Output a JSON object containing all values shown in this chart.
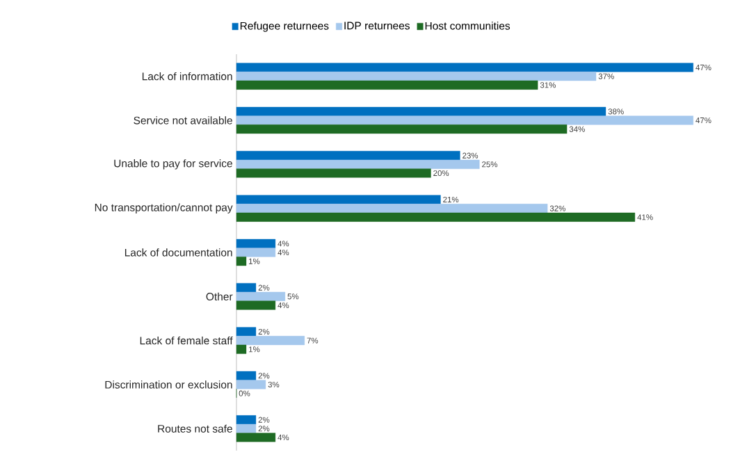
{
  "chart_data": {
    "type": "bar",
    "orientation": "horizontal",
    "legend": "top",
    "categories": [
      "Lack of information",
      "Service not available",
      "Unable to pay for service",
      "No transportation/cannot pay",
      "Lack of documentation",
      "Other",
      "Lack of female staff",
      "Discrimination or exclusion",
      "Routes not safe"
    ],
    "series": [
      {
        "name": "Refugee returnees",
        "color": "#0070c0",
        "values": [
          47,
          38,
          23,
          21,
          4,
          2,
          2,
          2,
          2
        ],
        "value_labels": [
          "47%",
          "38%",
          "23%",
          "21%",
          "4%",
          "2%",
          "2%",
          "2%",
          "2%"
        ]
      },
      {
        "name": "IDP returnees",
        "color": "#a5c8ed",
        "values": [
          37,
          47,
          25,
          32,
          4,
          5,
          7,
          3,
          2
        ],
        "value_labels": [
          "37%",
          "47%",
          "25%",
          "32%",
          "4%",
          "5%",
          "7%",
          "3%",
          "2%"
        ]
      },
      {
        "name": "Host communities",
        "color": "#1e6b24",
        "values": [
          31,
          34,
          20,
          41,
          1,
          4,
          1,
          0,
          4
        ],
        "value_labels": [
          "31%",
          "34%",
          "20%",
          "41%",
          "1%",
          "4%",
          "1%",
          "0%",
          "4%"
        ]
      }
    ]
  }
}
